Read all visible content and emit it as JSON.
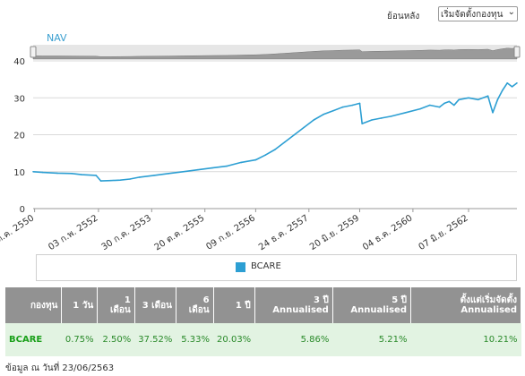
{
  "controls": {
    "period_label": "ย้อนหลัง",
    "period_value": "เริ่มจัดตั้งกองทุน"
  },
  "chart_data": {
    "type": "line",
    "title": "NAV",
    "ylim": [
      0,
      40
    ],
    "yticks": [
      0,
      10,
      20,
      30,
      40
    ],
    "xtick_labels": [
      "ต.ค. 2550",
      "03 ก.พ. 2552",
      "30 ก.ค. 2553",
      "20 ต.ค. 2555",
      "09 ก.ย. 2556",
      "24 ธ.ค. 2557",
      "20 มิ.ย. 2559",
      "04 ธ.ค. 2560",
      "07 มิ.ย. 2562"
    ],
    "grid": true,
    "legend_position": "bottom",
    "navigator": true,
    "series": [
      {
        "name": "BCARE",
        "color": "#2d9fd3",
        "x": [
          0,
          0.02,
          0.05,
          0.08,
          0.1,
          0.13,
          0.14,
          0.16,
          0.18,
          0.2,
          0.22,
          0.25,
          0.28,
          0.31,
          0.34,
          0.37,
          0.4,
          0.43,
          0.46,
          0.48,
          0.5,
          0.52,
          0.54,
          0.56,
          0.58,
          0.6,
          0.62,
          0.64,
          0.66,
          0.675,
          0.68,
          0.7,
          0.72,
          0.74,
          0.77,
          0.8,
          0.82,
          0.84,
          0.85,
          0.86,
          0.87,
          0.88,
          0.9,
          0.92,
          0.94,
          0.95,
          0.96,
          0.97,
          0.98,
          0.99,
          1.0
        ],
        "values": [
          10,
          9.8,
          9.6,
          9.5,
          9.2,
          9.0,
          7.5,
          7.6,
          7.7,
          8.0,
          8.5,
          9.0,
          9.5,
          10.0,
          10.5,
          11.0,
          11.5,
          12.5,
          13.2,
          14.5,
          16,
          18,
          20,
          22,
          24,
          25.5,
          26.5,
          27.5,
          28,
          28.5,
          23,
          24,
          24.5,
          25,
          26,
          27,
          28,
          27.5,
          28.5,
          29,
          28,
          29.5,
          30,
          29.5,
          30.5,
          26,
          29.5,
          32,
          34,
          33,
          34
        ]
      }
    ]
  },
  "legend": {
    "label": "BCARE"
  },
  "table": {
    "headers": [
      "กองทุน",
      "1 วัน",
      "1 เดือน",
      "3 เดือน",
      "6 เดือน",
      "1 ปี",
      "3 ปี Annualised",
      "5 ปี Annualised",
      "ตั้งแต่เริ่มจัดตั้ง Annualised"
    ],
    "rows": [
      [
        "BCARE",
        "0.75%",
        "2.50%",
        "37.52%",
        "5.33%",
        "20.03%",
        "5.86%",
        "5.21%",
        "10.21%"
      ]
    ]
  },
  "footnote": "ข้อมูล ณ วันที่ 23/06/2563"
}
